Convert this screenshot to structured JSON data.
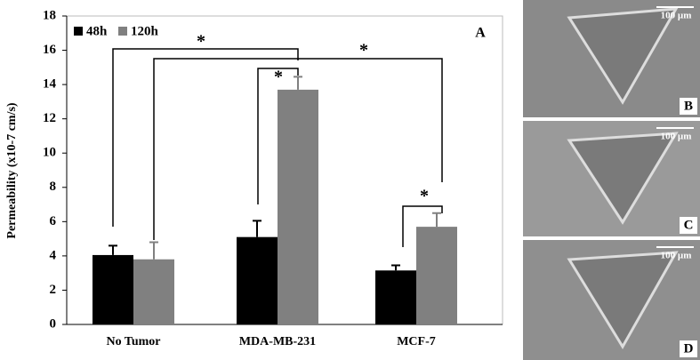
{
  "chart_data": {
    "type": "bar",
    "panel_label": "A",
    "y_label": "Permeability (x10-7 cm/s)",
    "categories": [
      "No Tumor",
      "MDA-MB-231",
      "MCF-7"
    ],
    "series": [
      {
        "name": "48h",
        "color": "#000000",
        "values": [
          4.05,
          5.1,
          3.15
        ],
        "errors": [
          0.55,
          0.95,
          0.3
        ]
      },
      {
        "name": "120h",
        "color": "#808080",
        "values": [
          3.8,
          13.7,
          5.7
        ],
        "errors": [
          1.0,
          0.75,
          0.8
        ]
      }
    ],
    "ylim": [
      0,
      18
    ],
    "yticks": [
      0,
      2,
      4,
      6,
      8,
      10,
      12,
      14,
      16,
      18
    ],
    "legend": "top-left",
    "annotations": [
      "*",
      "*",
      "*",
      "*"
    ]
  },
  "panels": [
    {
      "label": "B",
      "scale": "100 µm"
    },
    {
      "label": "C",
      "scale": "100 µm"
    },
    {
      "label": "D",
      "scale": "100 µm"
    }
  ]
}
